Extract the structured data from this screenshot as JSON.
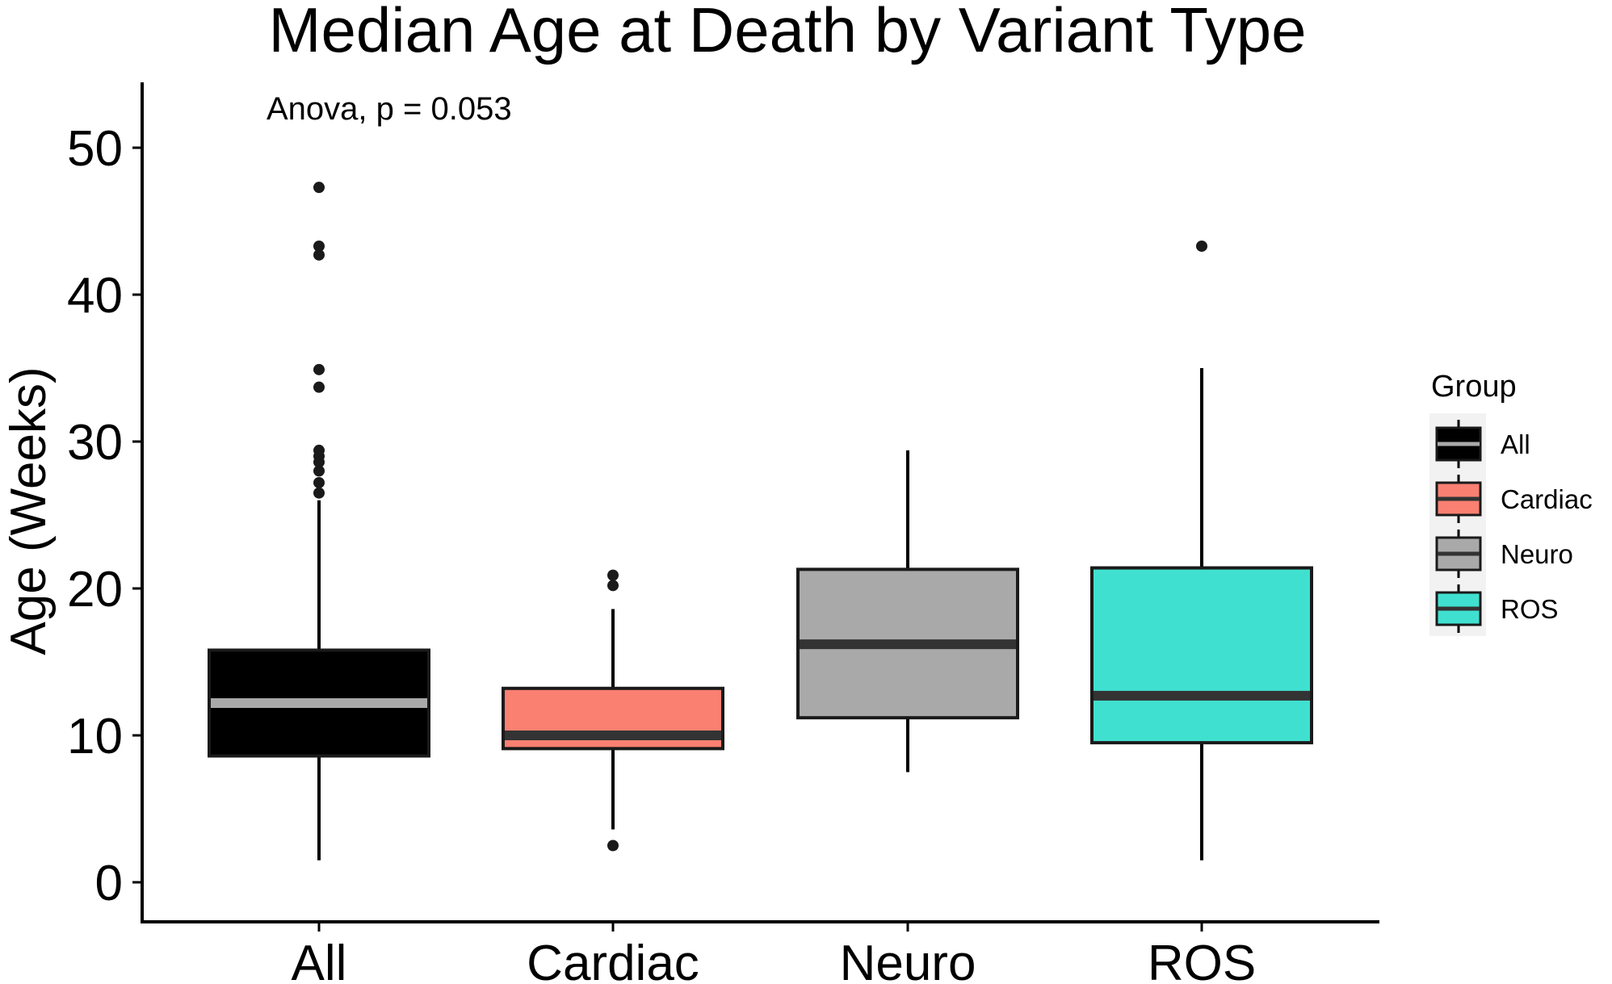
{
  "chart_data": {
    "type": "boxplot",
    "title": "Median Age at Death by Variant Type",
    "xlabel": "",
    "ylabel": "Age (Weeks)",
    "ylim": [
      -2.5,
      54.5
    ],
    "yticks": [
      0,
      10,
      20,
      30,
      40,
      50
    ],
    "grid": false,
    "annotation": "Anova, p = 0.053",
    "legend": {
      "title": "Group",
      "position": "right"
    },
    "groups": [
      {
        "name": "All",
        "fill": "#000000",
        "median_color": "#a9a9a9",
        "min": 1.5,
        "q1": 8.6,
        "median": 12.2,
        "q3": 15.8,
        "max": 26.0,
        "outliers": [
          26.5,
          27.2,
          28.0,
          28.6,
          29.0,
          29.4,
          33.7,
          34.9,
          42.7,
          43.3,
          47.3
        ]
      },
      {
        "name": "Cardiac",
        "fill": "#fa8072",
        "median_color": "#333333",
        "min": 3.6,
        "q1": 9.1,
        "median": 10.0,
        "q3": 13.2,
        "max": 18.6,
        "outliers": [
          2.5,
          20.2,
          20.9
        ]
      },
      {
        "name": "Neuro",
        "fill": "#a9a9a9",
        "median_color": "#333333",
        "min": 7.5,
        "q1": 11.2,
        "median": 16.2,
        "q3": 21.3,
        "max": 29.4,
        "outliers": []
      },
      {
        "name": "ROS",
        "fill": "#40e0d0",
        "median_color": "#333333",
        "min": 1.5,
        "q1": 9.5,
        "median": 12.7,
        "q3": 21.4,
        "max": 35.0,
        "outliers": [
          43.3
        ]
      }
    ]
  }
}
